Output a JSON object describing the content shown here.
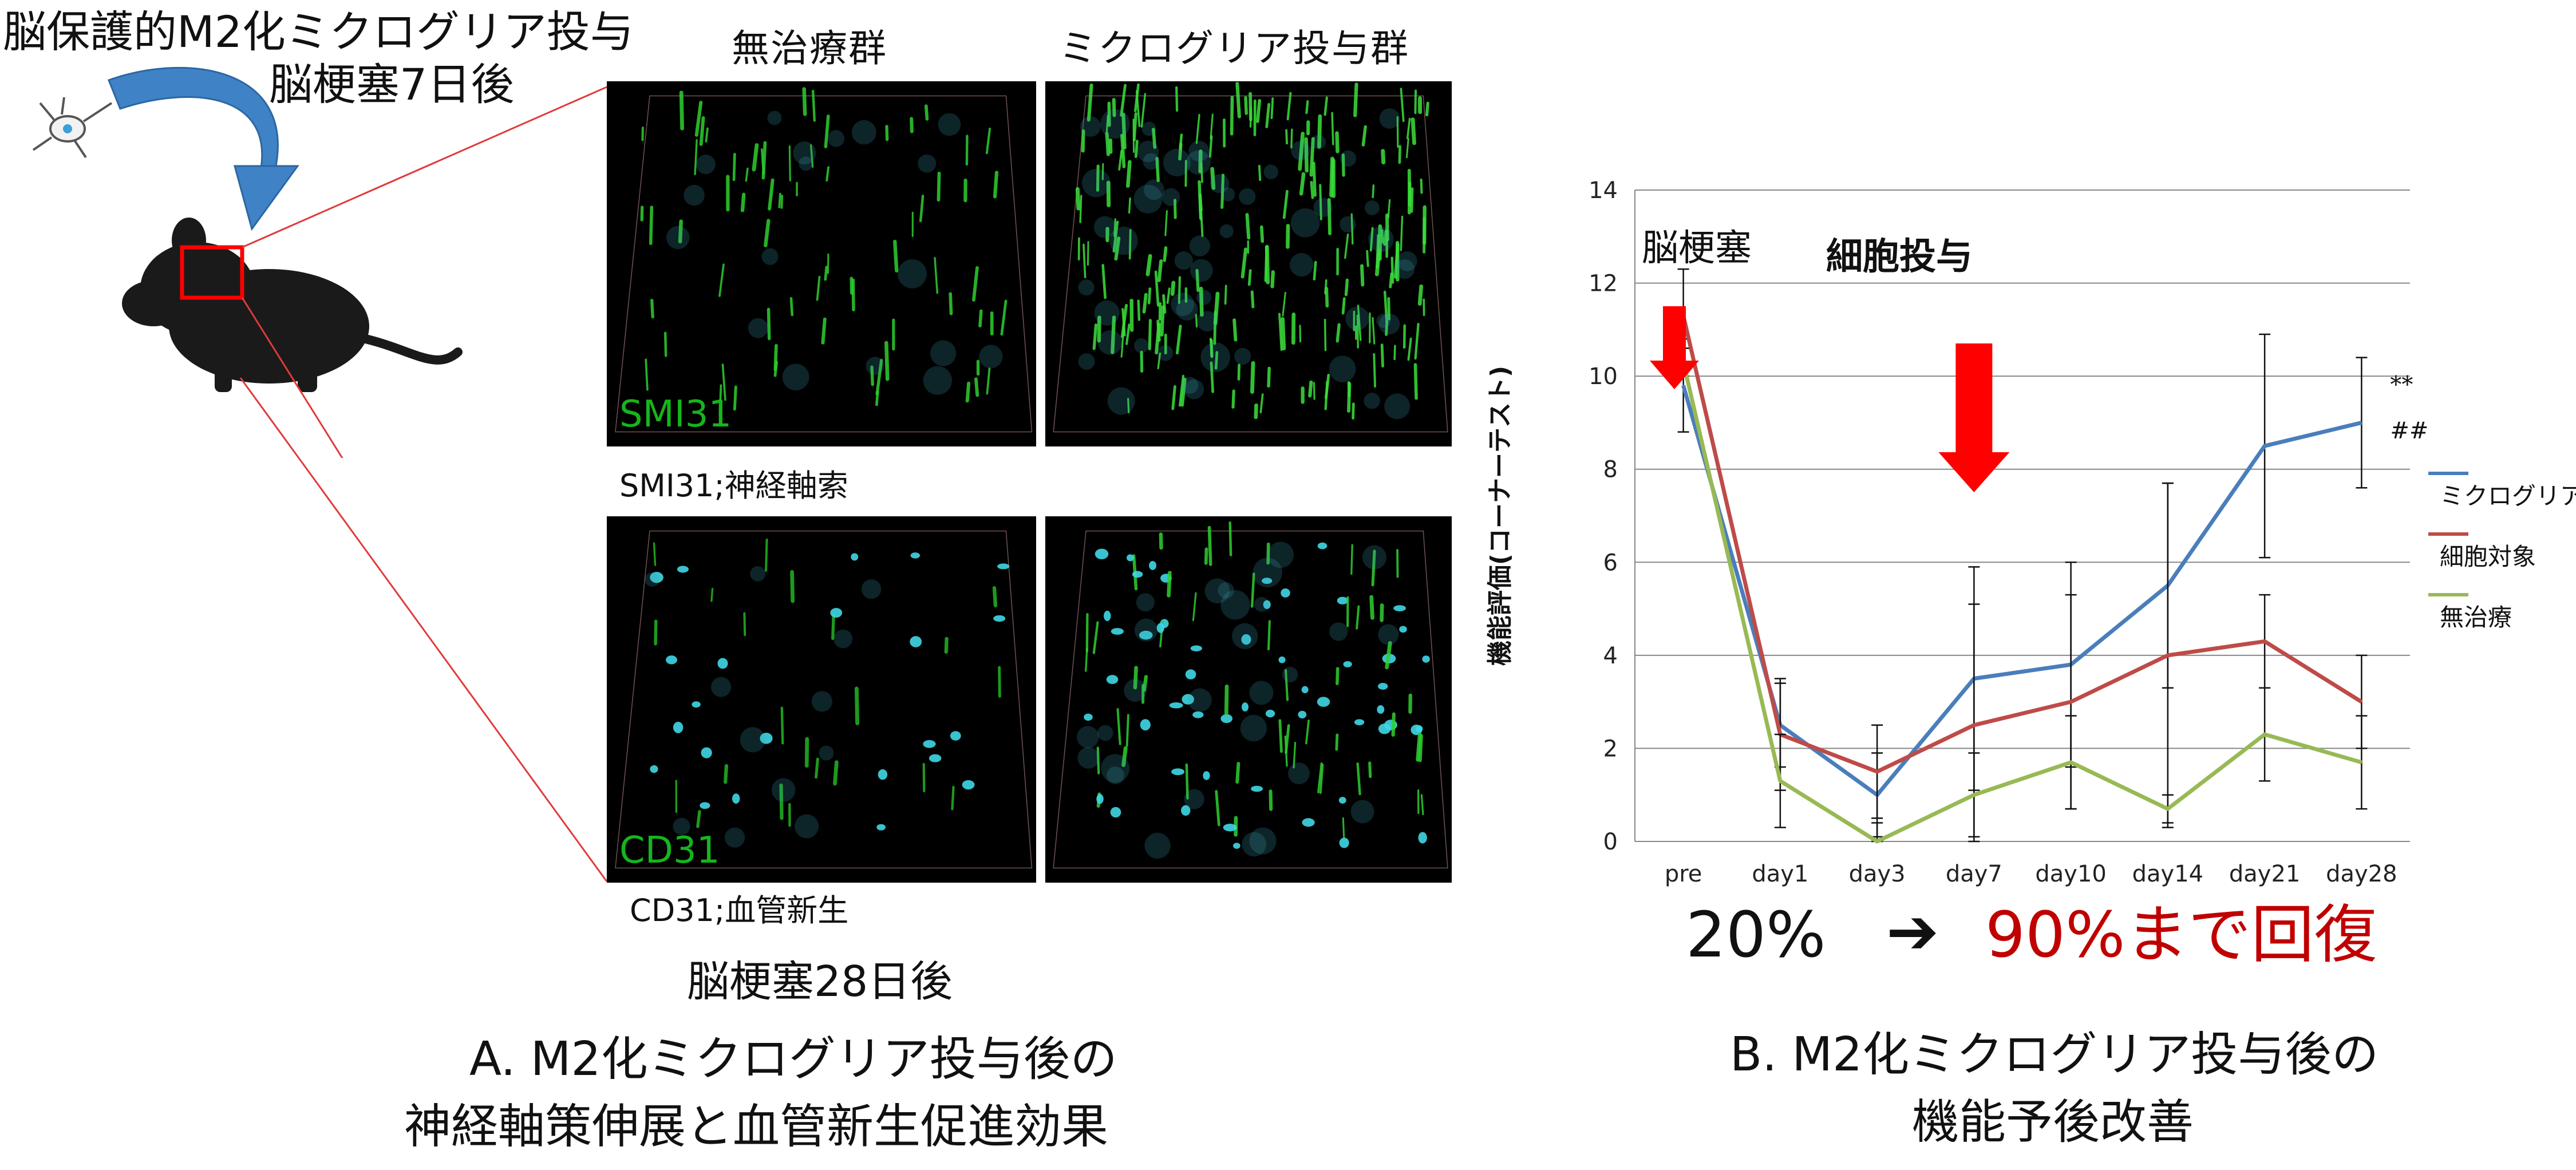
{
  "left": {
    "title_line1": "脳保護的M2化ミクログリア投与",
    "title_line2": "脳梗塞7日後",
    "column_headers": [
      "無治療群",
      "ミクログリア投与群"
    ],
    "marker_smi": "SMI31",
    "marker_cd": "CD31",
    "caption_smi": "SMI31;神経軸索",
    "caption_cd": "CD31;血管新生",
    "timepoint": "脳梗塞28日後",
    "caption_line1": "A. M2化ミクログリア投与後の",
    "caption_line2": "神経軸策伸展と血管新生促進効果"
  },
  "right": {
    "annotation_infarct": "脳梗塞",
    "annotation_cells": "細胞投与",
    "recovery_before": "20%",
    "recovery_arrow": "➔",
    "recovery_after": "90%まで回復",
    "caption_line1": "B. M2化ミクログリア投与後の",
    "caption_line2": "機能予後改善"
  },
  "colors": {
    "microglia": "#4a7ebb",
    "cell_control": "#be4b48",
    "untreated": "#98b954",
    "arrow": "#ff0000",
    "highlight": "#c00000",
    "mouse_box": "#ff0000",
    "marker_text": "#16b51c"
  },
  "chart_data": {
    "type": "line",
    "categories": [
      "pre",
      "day1",
      "day3",
      "day7",
      "day10",
      "day14",
      "day21",
      "day28"
    ],
    "ylabel": "機能評価(コーナーテスト)",
    "xlabel": "",
    "ylim": [
      0,
      14
    ],
    "yticks": [
      0,
      2,
      4,
      6,
      8,
      10,
      12,
      14
    ],
    "grid": true,
    "legend_position": "right",
    "series": [
      {
        "name": "ミクログリア",
        "color": "#4a7ebb",
        "values": [
          9.8,
          2.5,
          1.0,
          3.5,
          3.8,
          5.5,
          8.5,
          9.0
        ],
        "errors": [
          1.0,
          0.9,
          0.9,
          2.4,
          2.2,
          2.2,
          2.4,
          1.4
        ]
      },
      {
        "name": "細胞対象",
        "color": "#be4b48",
        "values": [
          11.3,
          2.3,
          1.5,
          2.5,
          3.0,
          4.0,
          4.3,
          3.0
        ],
        "errors": [
          1.0,
          1.2,
          1.0,
          2.6,
          2.3,
          3.7,
          1.0,
          1.0
        ]
      },
      {
        "name": "無治療",
        "color": "#98b954",
        "values": [
          10.3,
          1.3,
          0.0,
          1.0,
          1.7,
          0.7,
          2.3,
          1.7
        ],
        "errors": [
          0.3,
          1.0,
          0.4,
          0.9,
          1.0,
          0.3,
          1.0,
          1.0
        ]
      }
    ],
    "significance": [
      "**",
      "##"
    ]
  }
}
